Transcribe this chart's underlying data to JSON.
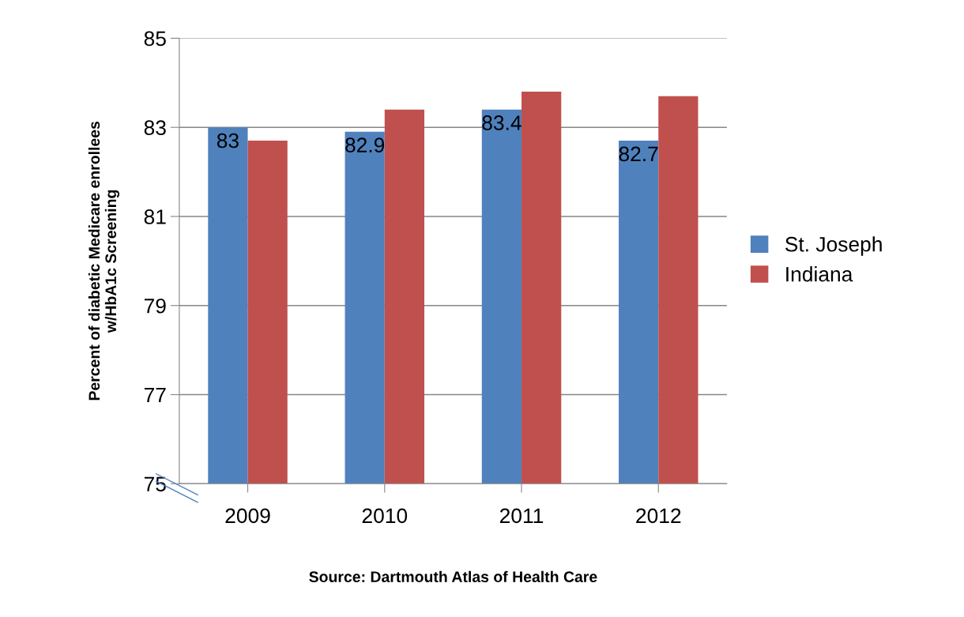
{
  "chart_data": {
    "type": "bar",
    "ylabel": "Percent of diabetic Medicare enrollees\nw/HbA1c Screening",
    "annotations": [
      "Source: Dartmouth Atlas of Health Care"
    ],
    "categories": [
      "2009",
      "2010",
      "2011",
      "2012"
    ],
    "series": [
      {
        "name": "St. Joseph",
        "color": "#4f81bd",
        "values": [
          83,
          82.9,
          83.4,
          82.7
        ],
        "value_labels": [
          "83",
          "82.9",
          "83.4",
          "82.7"
        ]
      },
      {
        "name": "Indiana",
        "color": "#c0504d",
        "values": [
          82.7,
          83.4,
          83.8,
          83.7
        ]
      }
    ],
    "ylim": [
      75,
      85
    ],
    "yticks": [
      75,
      77,
      79,
      81,
      83,
      85
    ],
    "grid": "y",
    "legend": "right"
  }
}
